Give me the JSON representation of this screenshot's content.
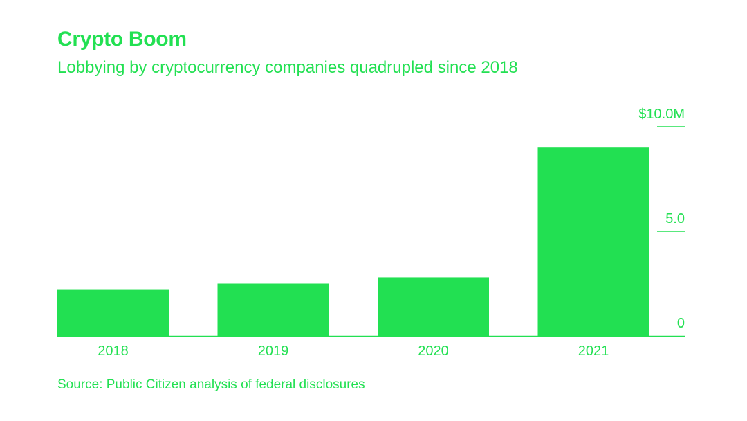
{
  "chart_data": {
    "type": "bar",
    "title": "Crypto Boom",
    "subtitle": "Lobbying by cryptocurrency companies quadrupled since 2018",
    "categories": [
      "2018",
      "2019",
      "2020",
      "2021"
    ],
    "values": [
      2.2,
      2.5,
      2.8,
      9.0
    ],
    "ylim": [
      0,
      10.0
    ],
    "yticks": [
      {
        "value": 0,
        "label": "0"
      },
      {
        "value": 5.0,
        "label": "5.0"
      },
      {
        "value": 10.0,
        "label": "$10.0M"
      }
    ],
    "xlabel": "",
    "ylabel": "",
    "y_axis_side": "right",
    "grid": false,
    "source": "Source: Public Citizen analysis of federal disclosures"
  },
  "colors": {
    "accent": "#22e052",
    "background": "#ffffff"
  }
}
